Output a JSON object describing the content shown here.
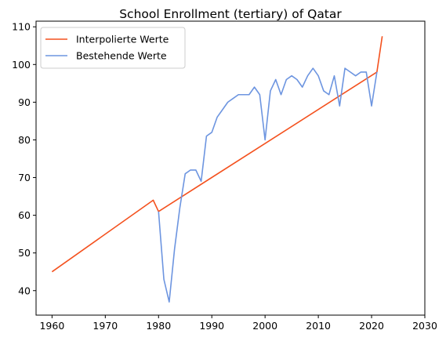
{
  "chart_data": {
    "type": "line",
    "title": "School Enrollment (tertiary) of Qatar",
    "xlabel": "",
    "ylabel": "",
    "xlim": [
      1957,
      2030
    ],
    "ylim": [
      33.5,
      111.5
    ],
    "xticks": [
      1960,
      1970,
      1980,
      1990,
      2000,
      2010,
      2020,
      2030
    ],
    "yticks": [
      40,
      50,
      60,
      70,
      80,
      90,
      100,
      110
    ],
    "grid": false,
    "legend_position": "top-left",
    "series": [
      {
        "name": "Interpolierte Werte",
        "color": "#f4511e",
        "x": [
          1960,
          1979,
          1980,
          2021,
          2022
        ],
        "y": [
          45,
          64,
          61,
          98,
          107.5
        ]
      },
      {
        "name": "Bestehende Werte",
        "color": "#6d95e0",
        "x": [
          1980,
          1981,
          1982,
          1983,
          1984,
          1985,
          1986,
          1987,
          1988,
          1989,
          1990,
          1991,
          1992,
          1993,
          1994,
          1995,
          1996,
          1997,
          1998,
          1999,
          2000,
          2001,
          2002,
          2003,
          2004,
          2005,
          2006,
          2007,
          2008,
          2009,
          2010,
          2011,
          2012,
          2013,
          2014,
          2015,
          2016,
          2017,
          2018,
          2019,
          2020,
          2021
        ],
        "y": [
          61,
          43,
          37,
          51,
          62,
          71,
          72,
          72,
          69,
          81,
          82,
          86,
          88,
          90,
          91,
          92,
          92,
          92,
          94,
          92,
          80,
          93,
          96,
          92,
          96,
          97,
          96,
          94,
          97,
          99,
          97,
          93,
          92,
          97,
          89,
          99,
          98,
          97,
          98,
          98,
          89,
          98
        ]
      }
    ]
  }
}
